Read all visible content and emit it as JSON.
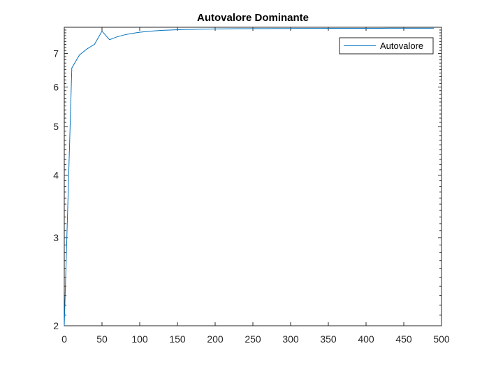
{
  "figure": {
    "background": "#ffffff"
  },
  "chart_data": {
    "type": "line",
    "title": "Autovalore  Dominante",
    "xlabel": "",
    "ylabel": "",
    "xlim": [
      0,
      500
    ],
    "ylim": [
      2,
      7.9
    ],
    "yscale": "log",
    "grid": false,
    "x_ticks": [
      0,
      50,
      100,
      150,
      200,
      250,
      300,
      350,
      400,
      450,
      500
    ],
    "x_tick_labels": [
      "0",
      "50",
      "100",
      "150",
      "200",
      "250",
      "300",
      "350",
      "400",
      "450",
      "500"
    ],
    "y_ticks": [
      2,
      3,
      4,
      5,
      6,
      7
    ],
    "y_tick_labels": [
      "2",
      "3",
      "4",
      "5",
      "6",
      "7"
    ],
    "legend": {
      "position": "top-right",
      "entries": [
        "Autovalore"
      ]
    },
    "series": [
      {
        "name": "Autovalore",
        "color": "#0072BD",
        "x": [
          0,
          10,
          20,
          30,
          40,
          50,
          60,
          70,
          80,
          90,
          100,
          110,
          120,
          130,
          140,
          150,
          160,
          170,
          180,
          190,
          200,
          210,
          220,
          230,
          240,
          250,
          260,
          270,
          280,
          290,
          300,
          310,
          320,
          330,
          340,
          350,
          360,
          370,
          380,
          390,
          400,
          410,
          420,
          430,
          440,
          450,
          460,
          470,
          480,
          490
        ],
        "y": [
          2.0,
          6.55,
          6.95,
          7.15,
          7.3,
          7.76,
          7.46,
          7.56,
          7.63,
          7.68,
          7.72,
          7.75,
          7.77,
          7.79,
          7.8,
          7.81,
          7.82,
          7.825,
          7.83,
          7.835,
          7.84,
          7.843,
          7.846,
          7.848,
          7.85,
          7.852,
          7.853,
          7.854,
          7.855,
          7.856,
          7.857,
          7.858,
          7.859,
          7.86,
          7.86,
          7.861,
          7.861,
          7.862,
          7.862,
          7.862,
          7.863,
          7.863,
          7.863,
          7.864,
          7.864,
          7.864,
          7.864,
          7.865,
          7.865,
          7.865
        ]
      }
    ]
  }
}
